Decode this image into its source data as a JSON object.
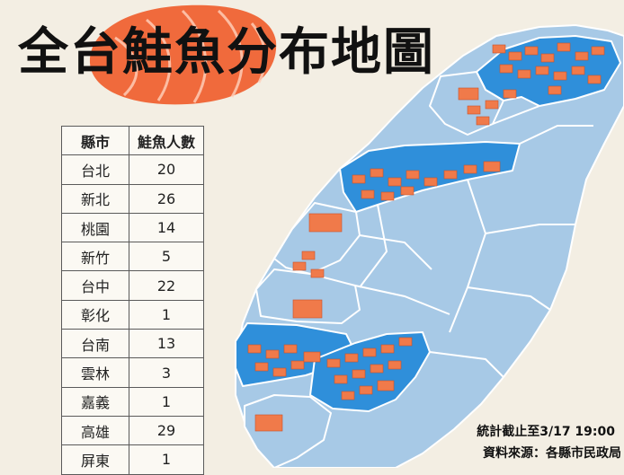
{
  "title": "全台鮭魚分布地圖",
  "table": {
    "headers": [
      "縣市",
      "鮭魚人數"
    ],
    "rows": [
      [
        "台北",
        "20"
      ],
      [
        "新北",
        "26"
      ],
      [
        "桃園",
        "14"
      ],
      [
        "新竹",
        "5"
      ],
      [
        "台中",
        "22"
      ],
      [
        "彰化",
        "1"
      ],
      [
        "台南",
        "13"
      ],
      [
        "雲林",
        "3"
      ],
      [
        "嘉義",
        "1"
      ],
      [
        "高雄",
        "29"
      ],
      [
        "屏東",
        "1"
      ]
    ]
  },
  "chart_data": {
    "type": "table",
    "title": "全台鮭魚分布地圖",
    "columns": [
      "縣市",
      "鮭魚人數"
    ],
    "categories": [
      "台北",
      "新北",
      "桃園",
      "新竹",
      "台中",
      "彰化",
      "台南",
      "雲林",
      "嘉義",
      "高雄",
      "屏東"
    ],
    "values": [
      20,
      26,
      14,
      5,
      22,
      1,
      13,
      3,
      1,
      29,
      1
    ]
  },
  "footnote": {
    "stat": "統計截止至3/17  19:00",
    "source": "資料來源：各縣市民政局"
  },
  "colors": {
    "background": "#f3eee3",
    "map_light": "#a7c9e6",
    "map_dark": "#2f8fda",
    "map_border": "#ffffff",
    "salmon": "#f07a4a"
  }
}
